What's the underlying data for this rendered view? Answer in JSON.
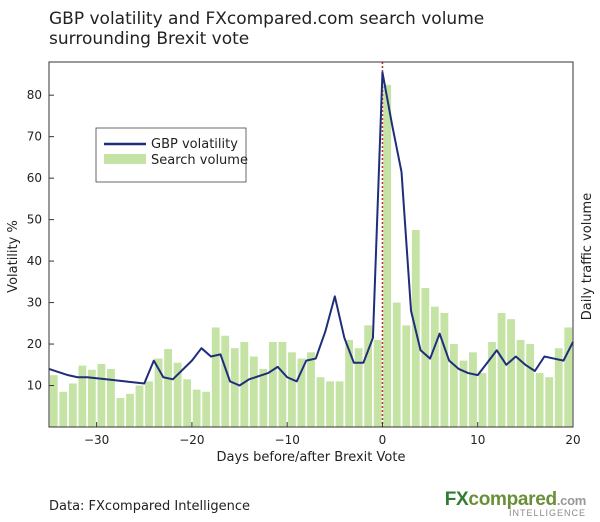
{
  "title": "GBP volatility and FXcompared.com search volume surrounding Brexit vote",
  "footer": {
    "source": "Data: FXcompared Intelligence"
  },
  "logo": {
    "main_fx": "FX",
    "main_rest": "compared",
    "dotcom": ".com",
    "sub": "INTELLIGENCE"
  },
  "colors": {
    "line": "#1f2e7a",
    "bar": "#c5e3a5",
    "vline": "#c0392b"
  },
  "chart_data": {
    "type": "bar",
    "xlabel": "Days before/after Brexit Vote",
    "ylabel": "Volatility %",
    "ylabel_right": "Daily traffic volume",
    "xlim": [
      -35,
      20
    ],
    "ylim": [
      0,
      88
    ],
    "xticks": [
      -30,
      -20,
      -10,
      0,
      10,
      20
    ],
    "yticks": [
      10,
      20,
      30,
      40,
      50,
      60,
      70,
      80
    ],
    "xtick_labels": [
      "−30",
      "−20",
      "−10",
      "0",
      "10",
      "20"
    ],
    "ytick_labels": [
      "10",
      "20",
      "30",
      "40",
      "50",
      "60",
      "70",
      "80"
    ],
    "legend": {
      "position": "upper-left",
      "line_label": "GBP volatility",
      "bar_label": "Search volume"
    },
    "vertical_line_x": 0,
    "series": [
      {
        "name": "Search volume",
        "type": "bar",
        "x": [
          -35,
          -34,
          -33,
          -32,
          -31,
          -30,
          -29,
          -28,
          -27,
          -26,
          -25,
          -24,
          -23,
          -22,
          -21,
          -20,
          -19,
          -18,
          -17,
          -16,
          -15,
          -14,
          -13,
          -12,
          -11,
          -10,
          -9,
          -8,
          -7,
          -6,
          -5,
          -4,
          -3,
          -2,
          -1,
          0,
          1,
          2,
          3,
          4,
          5,
          6,
          7,
          8,
          9,
          10,
          11,
          12,
          13,
          14,
          15,
          16,
          17,
          18,
          19
        ],
        "values": [
          12.5,
          8.5,
          10.5,
          14.8,
          13.8,
          15.2,
          14.0,
          7.0,
          8.0,
          10.0,
          11.0,
          16.5,
          18.8,
          15.5,
          11.5,
          9.0,
          8.5,
          24.0,
          22.0,
          19.0,
          20.5,
          17.0,
          14.0,
          20.5,
          20.5,
          18.0,
          16.5,
          18.0,
          12.0,
          11.0,
          11.0,
          21.0,
          19.0,
          24.5,
          21.0,
          82.5,
          30.0,
          24.5,
          47.5,
          33.5,
          29.0,
          27.5,
          20.0,
          16.0,
          18.0,
          13.0,
          20.5,
          27.5,
          26.0,
          21.0,
          20.0,
          13.0,
          12.0,
          19.0,
          24.0
        ]
      },
      {
        "name": "GBP volatility",
        "type": "line",
        "x": [
          -35,
          -33,
          -32,
          -31,
          -29,
          -27,
          -25,
          -24,
          -23,
          -22,
          -20,
          -19,
          -18,
          -17,
          -16,
          -15,
          -14,
          -12,
          -11,
          -10,
          -9,
          -8,
          -7,
          -6,
          -5,
          -4,
          -3,
          -2,
          -1,
          0,
          1,
          2,
          3,
          4,
          5,
          6,
          7,
          8,
          9,
          10,
          11,
          12,
          13,
          14,
          15,
          16,
          17,
          18,
          19,
          20
        ],
        "values": [
          14.0,
          12.5,
          12.0,
          12.0,
          11.5,
          11.0,
          10.5,
          16.0,
          12.0,
          11.5,
          16.0,
          19.0,
          17.0,
          17.5,
          11.0,
          10.0,
          11.5,
          13.0,
          14.5,
          12.0,
          11.0,
          16.0,
          16.5,
          23.0,
          31.5,
          21.5,
          15.5,
          15.5,
          21.5,
          85.5,
          73.0,
          61.5,
          28.0,
          18.5,
          16.5,
          22.5,
          16.0,
          14.0,
          13.0,
          12.5,
          15.5,
          18.5,
          15.0,
          17.0,
          15.0,
          13.5,
          17.0,
          16.5,
          16.0,
          20.5
        ]
      }
    ]
  }
}
